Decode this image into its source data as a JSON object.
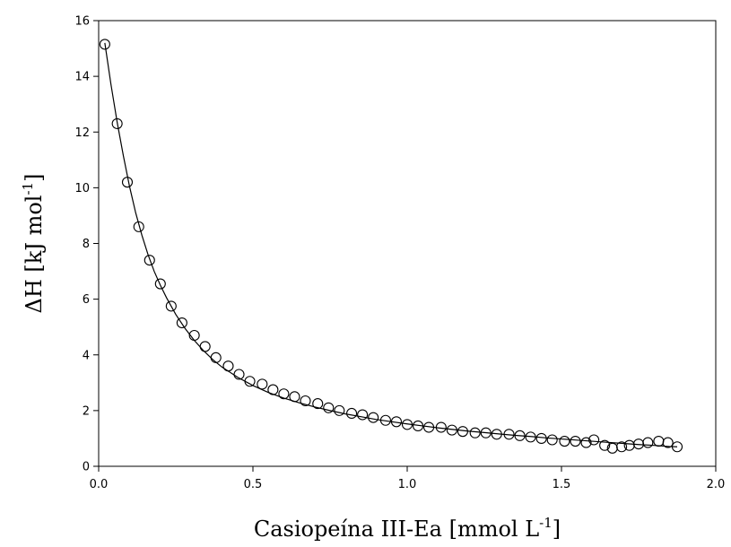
{
  "chart_data": {
    "type": "scatter",
    "xlabel_main": "Casiopeína III-Ea [mmol L",
    "xlabel_sup": "-1",
    "xlabel_tail": "]",
    "ylabel_main": "ΔH [kJ mol",
    "ylabel_sup": "-1",
    "ylabel_tail": "]",
    "xlim": [
      0.0,
      2.0
    ],
    "ylim": [
      0,
      16
    ],
    "xticks": [
      "0.0",
      "0.5",
      "1.0",
      "1.5",
      "2.0"
    ],
    "yticks": [
      "0",
      "2",
      "4",
      "6",
      "8",
      "10",
      "12",
      "14",
      "16"
    ],
    "grid": false,
    "legend": "none",
    "series": [
      {
        "marker": "open-circle",
        "x": [
          0.02,
          0.06,
          0.093,
          0.13,
          0.165,
          0.2,
          0.235,
          0.27,
          0.31,
          0.345,
          0.38,
          0.42,
          0.455,
          0.49,
          0.53,
          0.565,
          0.6,
          0.635,
          0.67,
          0.71,
          0.745,
          0.78,
          0.82,
          0.855,
          0.89,
          0.93,
          0.965,
          1.0,
          1.035,
          1.07,
          1.11,
          1.145,
          1.18,
          1.22,
          1.255,
          1.29,
          1.33,
          1.365,
          1.4,
          1.435,
          1.47,
          1.51,
          1.545,
          1.58,
          1.605,
          1.64,
          1.665,
          1.695,
          1.72,
          1.75,
          1.78,
          1.815,
          1.845,
          1.875
        ],
        "y": [
          15.15,
          12.3,
          10.2,
          8.6,
          7.4,
          6.55,
          5.75,
          5.15,
          4.7,
          4.3,
          3.9,
          3.6,
          3.3,
          3.05,
          2.95,
          2.75,
          2.6,
          2.5,
          2.35,
          2.25,
          2.1,
          2.0,
          1.9,
          1.85,
          1.75,
          1.65,
          1.6,
          1.5,
          1.45,
          1.4,
          1.4,
          1.3,
          1.25,
          1.2,
          1.2,
          1.15,
          1.15,
          1.1,
          1.05,
          1.0,
          0.95,
          0.9,
          0.9,
          0.85,
          0.95,
          0.75,
          0.65,
          0.7,
          0.75,
          0.8,
          0.85,
          0.9,
          0.85,
          0.7
        ]
      }
    ],
    "fit_curve": {
      "x": [
        0.02,
        0.04,
        0.06,
        0.08,
        0.1,
        0.12,
        0.14,
        0.16,
        0.18,
        0.2,
        0.22,
        0.25,
        0.28,
        0.31,
        0.34,
        0.37,
        0.4,
        0.45,
        0.5,
        0.55,
        0.6,
        0.65,
        0.7,
        0.75,
        0.8,
        0.85,
        0.9,
        0.95,
        1.0,
        1.05,
        1.1,
        1.15,
        1.2,
        1.25,
        1.3,
        1.35,
        1.4,
        1.45,
        1.5,
        1.55,
        1.6,
        1.65,
        1.7,
        1.75,
        1.8,
        1.85,
        1.875
      ],
      "y": [
        15.2,
        13.7,
        12.35,
        11.15,
        10.05,
        9.1,
        8.3,
        7.6,
        7.0,
        6.5,
        6.05,
        5.45,
        4.95,
        4.52,
        4.15,
        3.83,
        3.56,
        3.2,
        2.9,
        2.65,
        2.45,
        2.28,
        2.13,
        2.0,
        1.88,
        1.78,
        1.68,
        1.6,
        1.52,
        1.45,
        1.38,
        1.32,
        1.26,
        1.21,
        1.16,
        1.11,
        1.07,
        1.02,
        0.98,
        0.94,
        0.9,
        0.86,
        0.82,
        0.78,
        0.75,
        0.71,
        0.7
      ]
    }
  }
}
